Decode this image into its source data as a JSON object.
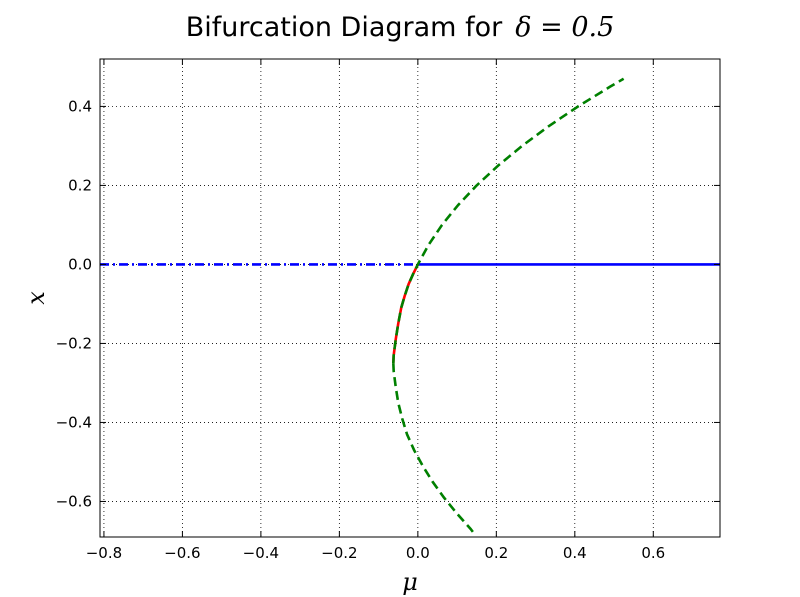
{
  "chart_data": {
    "type": "line",
    "title": "Bifurcation Diagram for",
    "title_math": "δ = 0.5",
    "xlabel": "μ",
    "ylabel": "x",
    "xlim": [
      -0.81,
      0.77
    ],
    "ylim": [
      -0.69,
      0.52
    ],
    "grid": true,
    "xticks": [
      -0.8,
      -0.6,
      -0.4,
      -0.2,
      0.0,
      0.2,
      0.4,
      0.6
    ],
    "xtick_labels": [
      "−0.8",
      "−0.6",
      "−0.4",
      "−0.2",
      "0.0",
      "0.2",
      "0.4",
      "0.6"
    ],
    "yticks": [
      0.4,
      0.2,
      0.0,
      -0.2,
      -0.4,
      -0.6
    ],
    "ytick_labels": [
      "0.4",
      "0.2",
      "0.0",
      "−0.2",
      "−0.4",
      "−0.6"
    ],
    "series": [
      {
        "color": "#0000ff",
        "style": "dashdot",
        "x": [
          -0.81,
          0.0
        ],
        "y": [
          0.0,
          0.0
        ]
      },
      {
        "color": "#0000ff",
        "style": "solid",
        "x": [
          0.0,
          0.77
        ],
        "y": [
          0.0,
          0.0
        ]
      },
      {
        "color": "#ff0000",
        "style": "solid",
        "x": [
          0.0,
          -0.0124,
          -0.0236,
          -0.0336,
          -0.0424,
          -0.05,
          -0.0564,
          -0.0616,
          -0.0625
        ],
        "y": [
          0.0,
          -0.025,
          -0.05,
          -0.08,
          -0.11,
          -0.15,
          -0.19,
          -0.23,
          -0.25
        ]
      },
      {
        "color": "#008000",
        "style": "dashed",
        "x": [
          -0.0625,
          -0.0616,
          -0.0564,
          -0.05,
          -0.0424,
          -0.0336,
          -0.0236,
          -0.0124,
          0.0,
          0.0276,
          0.0616,
          0.1024,
          0.15,
          0.2044,
          0.2656,
          0.3336,
          0.4084,
          0.49,
          0.5244
        ],
        "y": [
          -0.25,
          -0.23,
          -0.19,
          -0.15,
          -0.11,
          -0.08,
          -0.05,
          -0.025,
          0.0,
          0.05,
          0.1,
          0.15,
          0.2,
          0.25,
          0.3,
          0.35,
          0.4,
          0.45,
          0.47
        ]
      },
      {
        "color": "#008000",
        "style": "dashed",
        "x": [
          -0.0625,
          -0.0616,
          -0.0564,
          -0.05,
          -0.0399,
          -0.0276,
          -0.0096,
          0.0124,
          0.0375,
          0.0664,
          0.0991,
          0.1349,
          0.1424
        ],
        "y": [
          -0.25,
          -0.27,
          -0.31,
          -0.35,
          -0.39,
          -0.43,
          -0.47,
          -0.51,
          -0.55,
          -0.59,
          -0.63,
          -0.67,
          -0.68
        ]
      }
    ]
  }
}
